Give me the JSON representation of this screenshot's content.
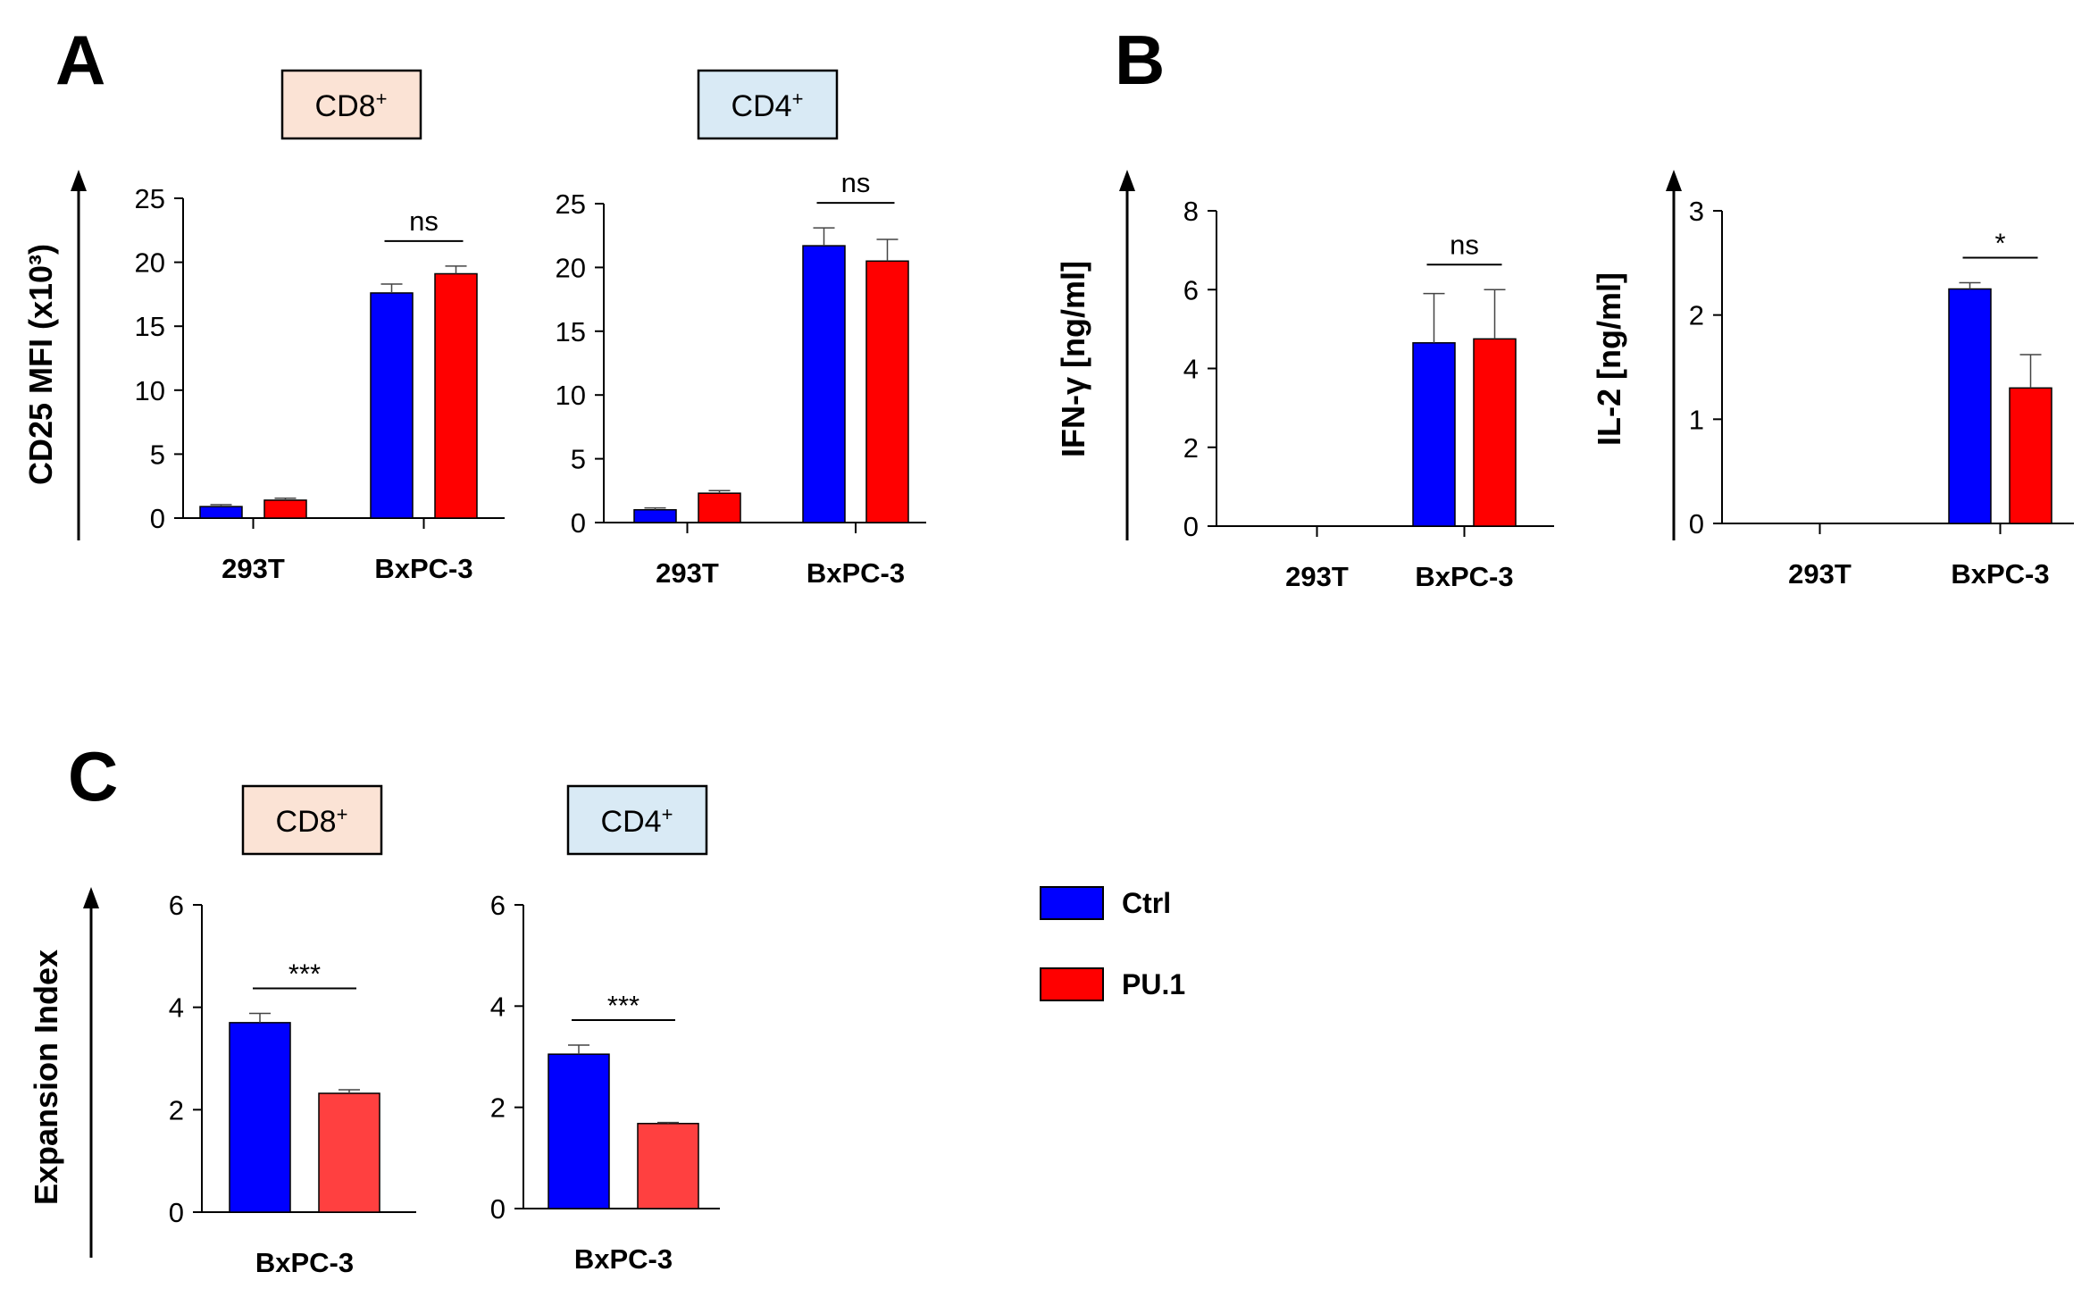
{
  "panels": {
    "a": "A",
    "b": "B",
    "c": "C"
  },
  "subset_boxes": {
    "a_cd8": {
      "label": "CD8",
      "sup": "+",
      "fill": "#fbe3d5"
    },
    "a_cd4": {
      "label": "CD4",
      "sup": "+",
      "fill": "#d9eaf5"
    },
    "c_cd8": {
      "label": "CD8",
      "sup": "+",
      "fill": "#fbe3d5"
    },
    "c_cd4": {
      "label": "CD4",
      "sup": "+",
      "fill": "#d9eaf5"
    }
  },
  "axis_titles": {
    "a": "CD25 MFI (x10³)",
    "b_ifn": "IFN-γ [ng/ml]",
    "b_il2": "IL-2 [ng/ml]",
    "c": "Expansion Index"
  },
  "legend": {
    "items": [
      {
        "label": "Ctrl",
        "color": "#0000ff"
      },
      {
        "label": "PU.1",
        "color": "#ff0000"
      }
    ]
  },
  "chart_data": [
    {
      "id": "A_CD8",
      "type": "bar",
      "title": "CD8+",
      "ylabel": "CD25 MFI (x10³)",
      "xlabel": "",
      "categories": [
        "293T",
        "BxPC-3"
      ],
      "ylim": [
        0,
        25
      ],
      "yticks": [
        0,
        5,
        10,
        15,
        20,
        25
      ],
      "series": [
        {
          "name": "Ctrl",
          "color": "#0000ff",
          "values": [
            0.9,
            17.6
          ],
          "errors": [
            0.15,
            0.7
          ]
        },
        {
          "name": "PU.1",
          "color": "#ff0000",
          "values": [
            1.4,
            19.1
          ],
          "errors": [
            0.15,
            0.6
          ]
        }
      ],
      "annotations": [
        {
          "category": "BxPC-3",
          "text": "ns"
        }
      ]
    },
    {
      "id": "A_CD4",
      "type": "bar",
      "title": "CD4+",
      "ylabel": "",
      "xlabel": "",
      "categories": [
        "293T",
        "BxPC-3"
      ],
      "ylim": [
        0,
        25
      ],
      "yticks": [
        0,
        5,
        10,
        15,
        20,
        25
      ],
      "series": [
        {
          "name": "Ctrl",
          "color": "#0000ff",
          "values": [
            1.0,
            21.7
          ],
          "errors": [
            0.15,
            1.4
          ]
        },
        {
          "name": "PU.1",
          "color": "#ff0000",
          "values": [
            2.3,
            20.5
          ],
          "errors": [
            0.2,
            1.7
          ]
        }
      ],
      "annotations": [
        {
          "category": "BxPC-3",
          "text": "ns"
        }
      ]
    },
    {
      "id": "B_IFNg",
      "type": "bar",
      "title": "",
      "ylabel": "IFN-γ [ng/ml]",
      "xlabel": "",
      "categories": [
        "293T",
        "BxPC-3"
      ],
      "ylim": [
        0,
        8
      ],
      "yticks": [
        0,
        2,
        4,
        6,
        8
      ],
      "series": [
        {
          "name": "Ctrl",
          "color": "#0000ff",
          "values": [
            0,
            4.65
          ],
          "errors": [
            0,
            1.25
          ]
        },
        {
          "name": "PU.1",
          "color": "#ff0000",
          "values": [
            0,
            4.75
          ],
          "errors": [
            0,
            1.25
          ]
        }
      ],
      "annotations": [
        {
          "category": "BxPC-3",
          "text": "ns"
        }
      ]
    },
    {
      "id": "B_IL2",
      "type": "bar",
      "title": "",
      "ylabel": "IL-2 [ng/ml]",
      "xlabel": "",
      "categories": [
        "293T",
        "BxPC-3"
      ],
      "ylim": [
        0,
        3
      ],
      "yticks": [
        0,
        1,
        2,
        3
      ],
      "series": [
        {
          "name": "Ctrl",
          "color": "#0000ff",
          "values": [
            0,
            2.25
          ],
          "errors": [
            0,
            0.06
          ]
        },
        {
          "name": "PU.1",
          "color": "#ff0000",
          "values": [
            0,
            1.3
          ],
          "errors": [
            0,
            0.32
          ]
        }
      ],
      "annotations": [
        {
          "category": "BxPC-3",
          "text": "*"
        }
      ]
    },
    {
      "id": "C_CD8",
      "type": "bar",
      "title": "CD8+",
      "ylabel": "Expansion Index",
      "xlabel": "",
      "categories": [
        "BxPC-3"
      ],
      "ylim": [
        0,
        6
      ],
      "yticks": [
        0,
        2,
        4,
        6
      ],
      "series": [
        {
          "name": "Ctrl",
          "color": "#0000ff",
          "values": [
            3.7
          ],
          "errors": [
            0.18
          ]
        },
        {
          "name": "PU.1",
          "color": "#ff4040",
          "values": [
            2.32
          ],
          "errors": [
            0.07
          ]
        }
      ],
      "annotations": [
        {
          "category": "BxPC-3",
          "text": "***"
        }
      ]
    },
    {
      "id": "C_CD4",
      "type": "bar",
      "title": "CD4+",
      "ylabel": "",
      "xlabel": "",
      "categories": [
        "BxPC-3"
      ],
      "ylim": [
        0,
        6
      ],
      "yticks": [
        0,
        2,
        4,
        6
      ],
      "series": [
        {
          "name": "Ctrl",
          "color": "#0000ff",
          "values": [
            3.05
          ],
          "errors": [
            0.18
          ]
        },
        {
          "name": "PU.1",
          "color": "#ff4040",
          "values": [
            1.68
          ],
          "errors": [
            0.02
          ]
        }
      ],
      "annotations": [
        {
          "category": "BxPC-3",
          "text": "***"
        }
      ]
    }
  ]
}
